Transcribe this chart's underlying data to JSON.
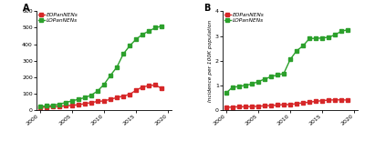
{
  "years": [
    2000,
    2001,
    2002,
    2003,
    2004,
    2005,
    2006,
    2007,
    2008,
    2009,
    2010,
    2011,
    2012,
    2013,
    2014,
    2015,
    2016,
    2017,
    2018,
    2019
  ],
  "panel_a": {
    "eo": [
      15,
      18,
      20,
      22,
      25,
      28,
      32,
      38,
      45,
      52,
      55,
      65,
      75,
      85,
      95,
      120,
      140,
      148,
      152,
      130
    ],
    "lo": [
      20,
      25,
      28,
      35,
      45,
      55,
      65,
      75,
      90,
      115,
      155,
      210,
      260,
      340,
      390,
      430,
      460,
      480,
      500,
      510
    ],
    "ylim": [
      0,
      600
    ],
    "yticks": [
      0,
      100,
      200,
      300,
      400,
      500,
      600
    ]
  },
  "panel_b": {
    "eo": [
      0.1,
      0.12,
      0.13,
      0.13,
      0.14,
      0.15,
      0.17,
      0.18,
      0.2,
      0.22,
      0.22,
      0.26,
      0.29,
      0.32,
      0.35,
      0.38,
      0.4,
      0.41,
      0.41,
      0.4
    ],
    "lo": [
      0.68,
      0.92,
      0.95,
      1.0,
      1.05,
      1.15,
      1.25,
      1.35,
      1.42,
      1.48,
      2.05,
      2.4,
      2.6,
      2.9,
      2.9,
      2.92,
      2.95,
      3.05,
      3.2,
      3.25
    ],
    "ylim": [
      0,
      4
    ],
    "yticks": [
      0,
      1,
      2,
      3,
      4
    ],
    "ylabel": "Incidence per 100K population"
  },
  "eo_color": "#d62728",
  "lo_color": "#2ca02c",
  "eo_label": "EOPanNENs",
  "lo_label": "LOPanNENs",
  "panel_a_label": "A",
  "panel_b_label": "B",
  "xticks": [
    2000,
    2005,
    2010,
    2015,
    2020
  ],
  "marker": "s",
  "markersize": 3.0,
  "linewidth": 1.0
}
